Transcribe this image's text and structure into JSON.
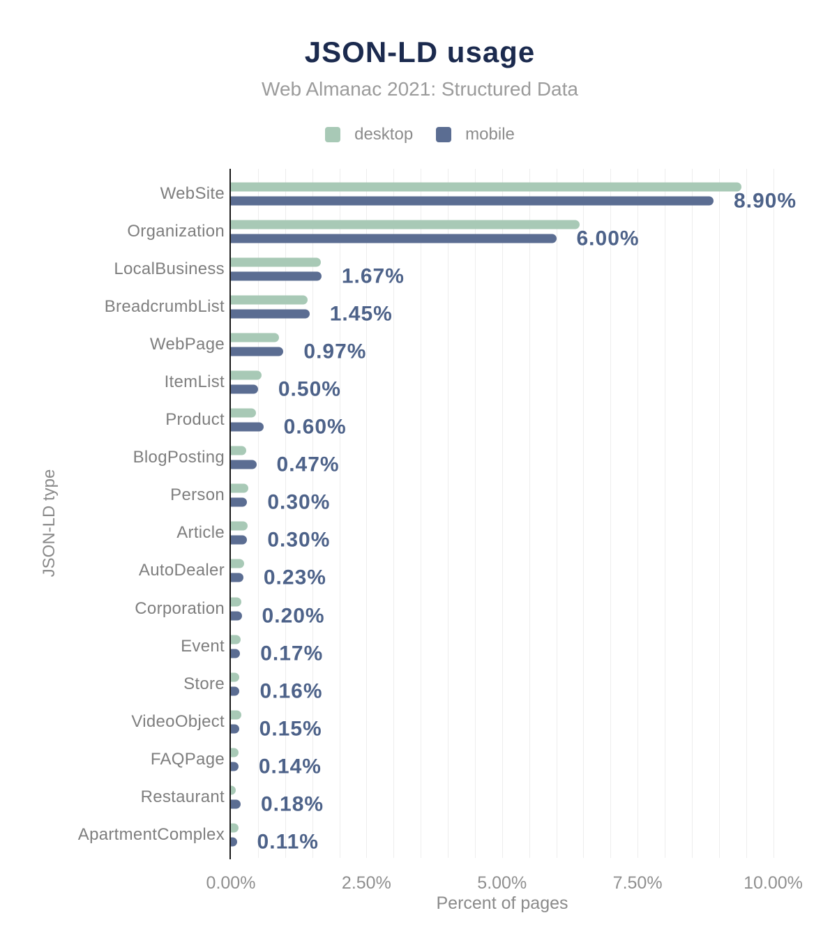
{
  "chart_data": {
    "type": "bar",
    "orientation": "horizontal",
    "title": "JSON-LD usage",
    "subtitle": "Web Almanac 2021: Structured Data",
    "xlabel": "Percent of pages",
    "ylabel": "JSON-LD type",
    "legend_position": "top",
    "grid": true,
    "grid_step": 0.5,
    "xlim": [
      0,
      10.52
    ],
    "x_ticks": [
      {
        "value": 0,
        "label": "0.00%"
      },
      {
        "value": 2.5,
        "label": "2.50%"
      },
      {
        "value": 5,
        "label": "5.00%"
      },
      {
        "value": 7.5,
        "label": "7.50%"
      },
      {
        "value": 10,
        "label": "10.00%"
      }
    ],
    "categories": [
      "WebSite",
      "Organization",
      "LocalBusiness",
      "BreadcrumbList",
      "WebPage",
      "ItemList",
      "Product",
      "BlogPosting",
      "Person",
      "Article",
      "AutoDealer",
      "Corporation",
      "Event",
      "Store",
      "VideoObject",
      "FAQPage",
      "Restaurant",
      "ApartmentComplex"
    ],
    "series": [
      {
        "name": "desktop",
        "color": "#a8c9b6",
        "values": [
          9.41,
          6.43,
          1.66,
          1.41,
          0.89,
          0.56,
          0.46,
          0.28,
          0.32,
          0.31,
          0.25,
          0.19,
          0.18,
          0.15,
          0.19,
          0.14,
          0.09,
          0.14
        ]
      },
      {
        "name": "mobile",
        "color": "#5b6d92",
        "values": [
          8.9,
          6.0,
          1.67,
          1.45,
          0.97,
          0.5,
          0.6,
          0.47,
          0.3,
          0.3,
          0.23,
          0.2,
          0.17,
          0.16,
          0.15,
          0.14,
          0.18,
          0.11
        ]
      }
    ],
    "value_labels": [
      "8.90%",
      "6.00%",
      "1.67%",
      "1.45%",
      "0.97%",
      "0.50%",
      "0.60%",
      "0.47%",
      "0.30%",
      "0.30%",
      "0.23%",
      "0.20%",
      "0.17%",
      "0.16%",
      "0.15%",
      "0.14%",
      "0.18%",
      "0.11%"
    ],
    "value_label_series": "mobile",
    "colors": {
      "title": "#1b2a4e",
      "subtitle": "#9b9b9b",
      "category_labels": "#7e7e7e",
      "value_labels": "#4d6289",
      "tick_labels": "#8f8f8f",
      "axis_titles": "#8a8a8a",
      "gridline": "#ededed",
      "axis_line": "#191919",
      "background": "#ffffff"
    }
  }
}
